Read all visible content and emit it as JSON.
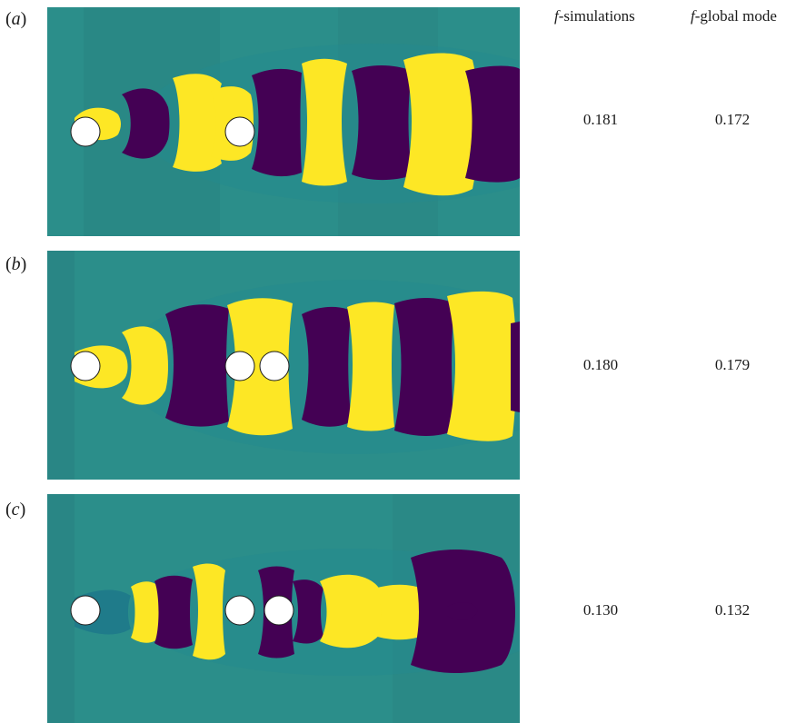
{
  "headers": {
    "simulations": {
      "symbol": "f",
      "text": "-simulations"
    },
    "global_mode": {
      "symbol": "f",
      "text": "-global mode"
    }
  },
  "colors": {
    "background": "#2b8e8a",
    "positive": "#fde725",
    "negative": "#440154",
    "cylinder": "#ffffff"
  },
  "panels": [
    {
      "label_open": "(",
      "label_letter": "a",
      "label_close": ")",
      "f_simulations": "0.181",
      "f_global_mode": "0.172"
    },
    {
      "label_open": "(",
      "label_letter": "b",
      "label_close": ")",
      "f_simulations": "0.180",
      "f_global_mode": "0.179"
    },
    {
      "label_open": "(",
      "label_letter": "c",
      "label_close": ")",
      "f_simulations": "0.130",
      "f_global_mode": "0.132"
    }
  ]
}
